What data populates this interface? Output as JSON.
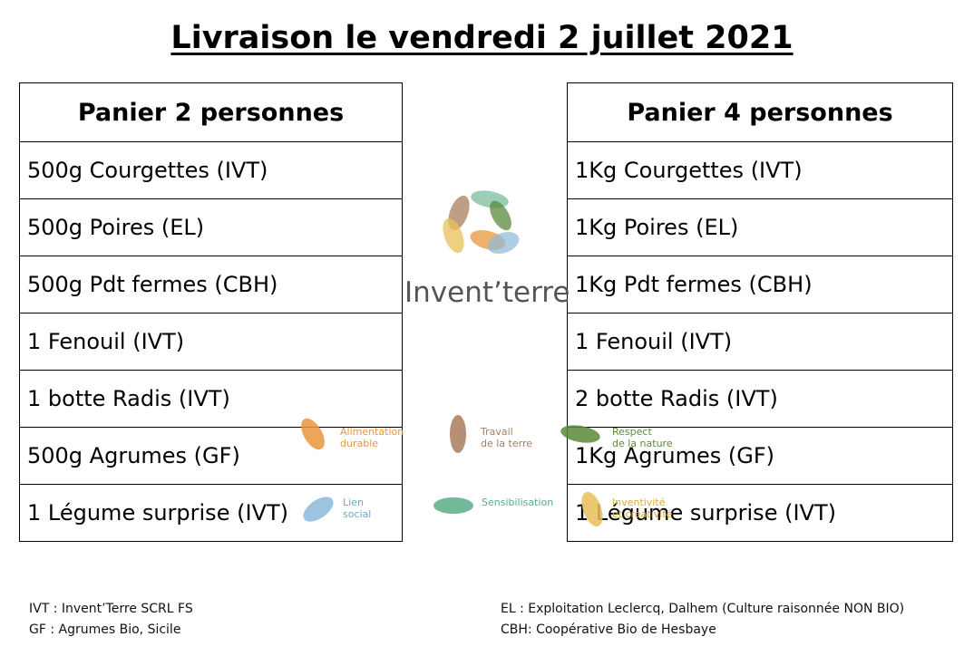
{
  "title": "Livraison le vendredi 2 juillet 2021",
  "left_basket": {
    "heading": "Panier 2 personnes",
    "items": [
      "500g Courgettes (IVT)",
      "500g Poires (EL)",
      "500g Pdt fermes (CBH)",
      "1 Fenouil (IVT)",
      "1 botte Radis (IVT)",
      "500g Agrumes (GF)",
      "1 Légume surprise (IVT)"
    ]
  },
  "right_basket": {
    "heading": "Panier 4 personnes",
    "items": [
      "1Kg Courgettes (IVT)",
      "1Kg Poires (EL)",
      "1Kg Pdt fermes (CBH)",
      "1 Fenouil (IVT)",
      "2 botte Radis (IVT)",
      "1Kg Agrumes (GF)",
      "1 Légume surprise (IVT)"
    ]
  },
  "logo": {
    "name": "Invent’terre",
    "values": [
      {
        "label_line1": "Alimentation",
        "label_line2": "durable",
        "color": "#e8973c"
      },
      {
        "label_line1": "Travail",
        "label_line2": "de la terre",
        "color": "#a97d5e"
      },
      {
        "label_line1": "Respect",
        "label_line2": "de la nature",
        "color": "#5b8a3a"
      },
      {
        "label_line1": "Lien",
        "label_line2": "social",
        "color": "#8bb9d9"
      },
      {
        "label_line1": "Sensibilisation",
        "label_line2": "",
        "color": "#5aac86"
      },
      {
        "label_line1": "Inventivité",
        "label_line2": "et créativité",
        "color": "#e8c05a"
      }
    ]
  },
  "footer": {
    "left": [
      "IVT : Invent’Terre SCRL FS",
      "GF : Agrumes Bio, Sicile"
    ],
    "right": [
      "EL : Exploitation Leclercq, Dalhem (Culture raisonnée NON BIO)",
      "CBH: Coopérative Bio de Hesbaye"
    ]
  }
}
